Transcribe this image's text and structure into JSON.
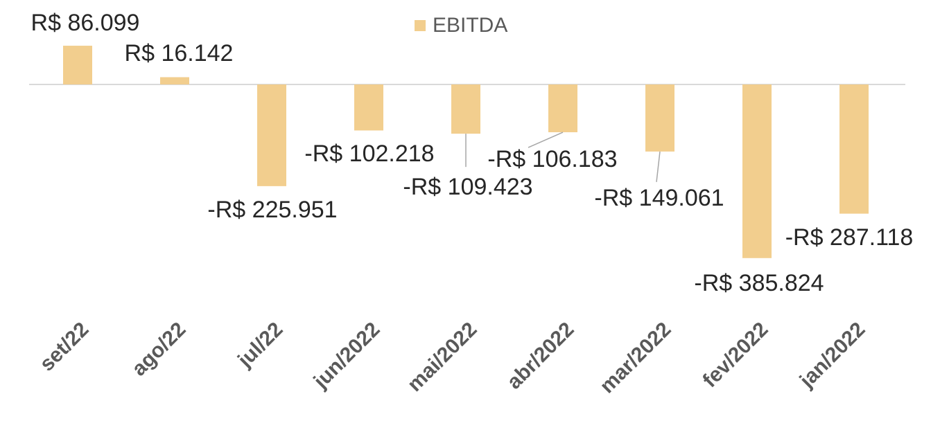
{
  "chart_data": {
    "type": "bar",
    "legend": "top",
    "color": "#f2ce8e",
    "ylim": [
      -400000,
      100000
    ],
    "series": [
      {
        "name": "EBITDA",
        "color": "#f2ce8e",
        "values": [
          86099,
          16142,
          -225951,
          -102218,
          -109423,
          -106183,
          -149061,
          -385824,
          -287118
        ],
        "value_labels": [
          "R$ 86.099",
          "R$ 16.142",
          "-R$ 225.951",
          "-R$ 102.218",
          "-R$ 109.423",
          "-R$ 106.183",
          "-R$ 149.061",
          "-R$ 385.824",
          "-R$ 287.118"
        ]
      }
    ],
    "categories": [
      "set/22",
      "ago/22",
      "jul/22",
      "jun/2022",
      "mai/2022",
      "abr/2022",
      "mar/2022",
      "fev/2022",
      "jan/2022"
    ]
  }
}
